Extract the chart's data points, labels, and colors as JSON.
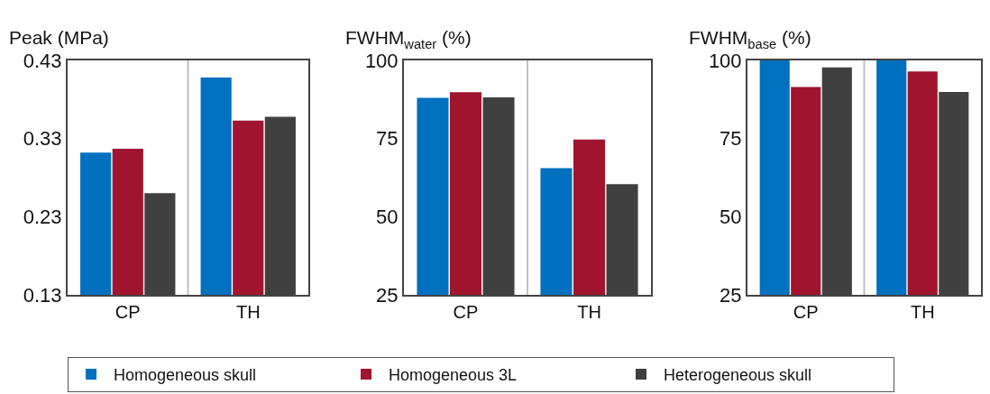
{
  "chart_data": [
    {
      "type": "bar",
      "title": "Peak (MPa)",
      "categories": [
        "CP",
        "TH"
      ],
      "ylim": [
        0.13,
        0.43
      ],
      "yticks": [
        0.13,
        0.23,
        0.33,
        0.43
      ],
      "grid": false,
      "legend": "bottom",
      "series": [
        {
          "name": "Homogeneous skull",
          "color": "#0070c0",
          "values": [
            0.312,
            0.408
          ]
        },
        {
          "name": "Homogeneous 3L",
          "color": "#a0142e",
          "values": [
            0.317,
            0.353
          ]
        },
        {
          "name": "Heterogeneous skull",
          "color": "#404040",
          "values": [
            0.26,
            0.358
          ]
        }
      ]
    },
    {
      "type": "bar",
      "title": "FWHM$_{water}$ (%)",
      "categories": [
        "CP",
        "TH"
      ],
      "ylim": [
        25,
        100
      ],
      "yticks": [
        25,
        50,
        75,
        100
      ],
      "grid": false,
      "legend": false,
      "series": [
        {
          "color": "#0070c0",
          "values": [
            88,
            65.5
          ]
        },
        {
          "color": "#a0142e",
          "values": [
            89.8,
            74.7
          ]
        },
        {
          "color": "#404040",
          "values": [
            88.2,
            60.4
          ]
        }
      ]
    },
    {
      "type": "bar",
      "title": "FWHM$_{base}$ (%)",
      "categories": [
        "CP",
        "TH"
      ],
      "ylim": [
        25,
        100
      ],
      "yticks": [
        25,
        50,
        75,
        100
      ],
      "grid": false,
      "legend": false,
      "series": [
        {
          "color": "#0070c0",
          "values": [
            100,
            100
          ]
        },
        {
          "color": "#a0142e",
          "values": [
            91.5,
            96.5
          ]
        },
        {
          "color": "#404040",
          "values": [
            97.8,
            89.9
          ]
        }
      ]
    }
  ]
}
